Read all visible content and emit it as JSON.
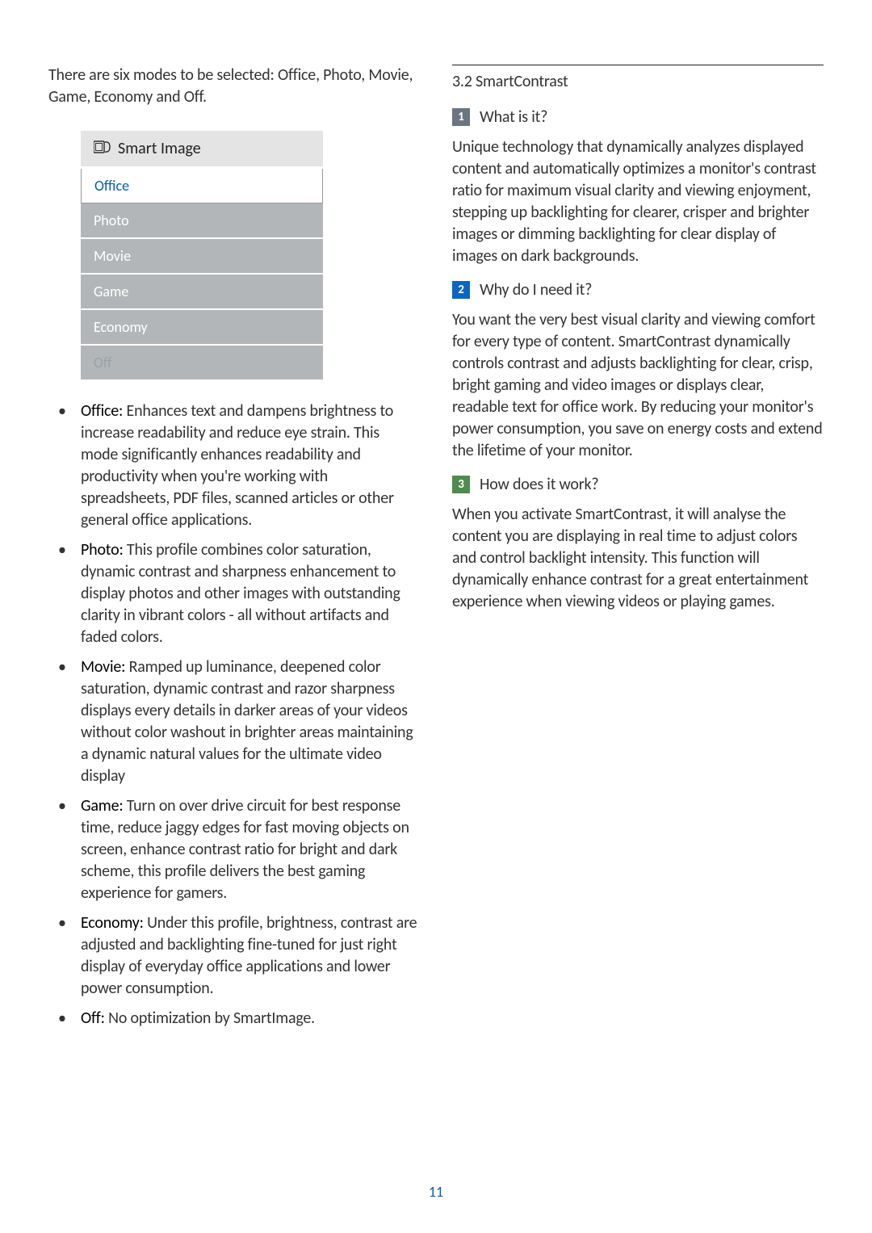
{
  "leftCol": {
    "intro": "There are six modes to be selected: Office, Photo, Movie, Game, Economy and Off.",
    "menu": {
      "header": "Smart Image",
      "headerIcon": "smartimage-icon",
      "items": [
        {
          "label": "Office",
          "selected": true
        },
        {
          "label": "Photo",
          "selected": false
        },
        {
          "label": "Movie",
          "selected": false
        },
        {
          "label": "Game",
          "selected": false
        },
        {
          "label": "Economy",
          "selected": false
        },
        {
          "label": "Off",
          "selected": false
        }
      ],
      "bgColor": "#b3b6b9",
      "headerBg": "#e4e4e4",
      "selectedColor": "#0b5bb5"
    },
    "bullets": [
      {
        "label": "Office:",
        "text": " Enhances text and dampens brightness to increase readability and reduce eye strain. This mode significantly enhances readability and productivity when you're working with spreadsheets, PDF files, scanned articles or other general office applications."
      },
      {
        "label": "Photo:",
        "text": " This profile combines color saturation, dynamic contrast and sharpness enhancement to display photos and other images with outstanding clarity in vibrant colors - all without artifacts and faded colors."
      },
      {
        "label": "Movie:",
        "text": " Ramped up luminance, deepened color saturation, dynamic contrast and razor sharpness displays every details in darker areas of your videos without color washout in brighter areas maintaining a dynamic natural values for the ultimate video display"
      },
      {
        "label": "Game:",
        "text": " Turn on over drive circuit for best response time, reduce jaggy edges for fast moving objects on screen, enhance contrast ratio for bright and dark scheme, this profile delivers the best gaming experience for gamers."
      },
      {
        "label": "Economy:",
        "text": " Under this profile, brightness, contrast are adjusted and backlighting fine-tuned for just right display of everyday office applications and lower power consumption."
      },
      {
        "label": "Off:",
        "text": " No optimization by SmartImage."
      }
    ]
  },
  "rightCol": {
    "sectionTitle": "3.2 SmartContrast",
    "blocks": [
      {
        "num": "1",
        "color": "#6b7680",
        "title": "What is it?",
        "para": "Unique technology that dynamically analyzes displayed content and automatically optimizes a monitor's contrast ratio for maximum visual clarity and viewing enjoyment, stepping up backlighting for clearer, crisper and brighter images or dimming backlighting for clear display of images on dark backgrounds."
      },
      {
        "num": "2",
        "color": "#0b66c3",
        "title": "Why do I need it?",
        "para": "You want the very best visual clarity and viewing comfort for every type of content. SmartContrast dynamically controls contrast and adjusts backlighting for clear, crisp, bright gaming and video images or displays clear, readable text for office work. By reducing your monitor's power consumption, you save on energy costs and extend the lifetime of your monitor."
      },
      {
        "num": "3",
        "color": "#4f8a4f",
        "title": "How does it work?",
        "para": "When you activate SmartContrast, it will analyse the content you are displaying in real time to adjust colors and control backlight intensity. This function will dynamically enhance contrast for a great entertainment experience when viewing videos or playing games."
      }
    ]
  },
  "pageNumber": "11",
  "pageNumberColor": "#0b5bb5"
}
